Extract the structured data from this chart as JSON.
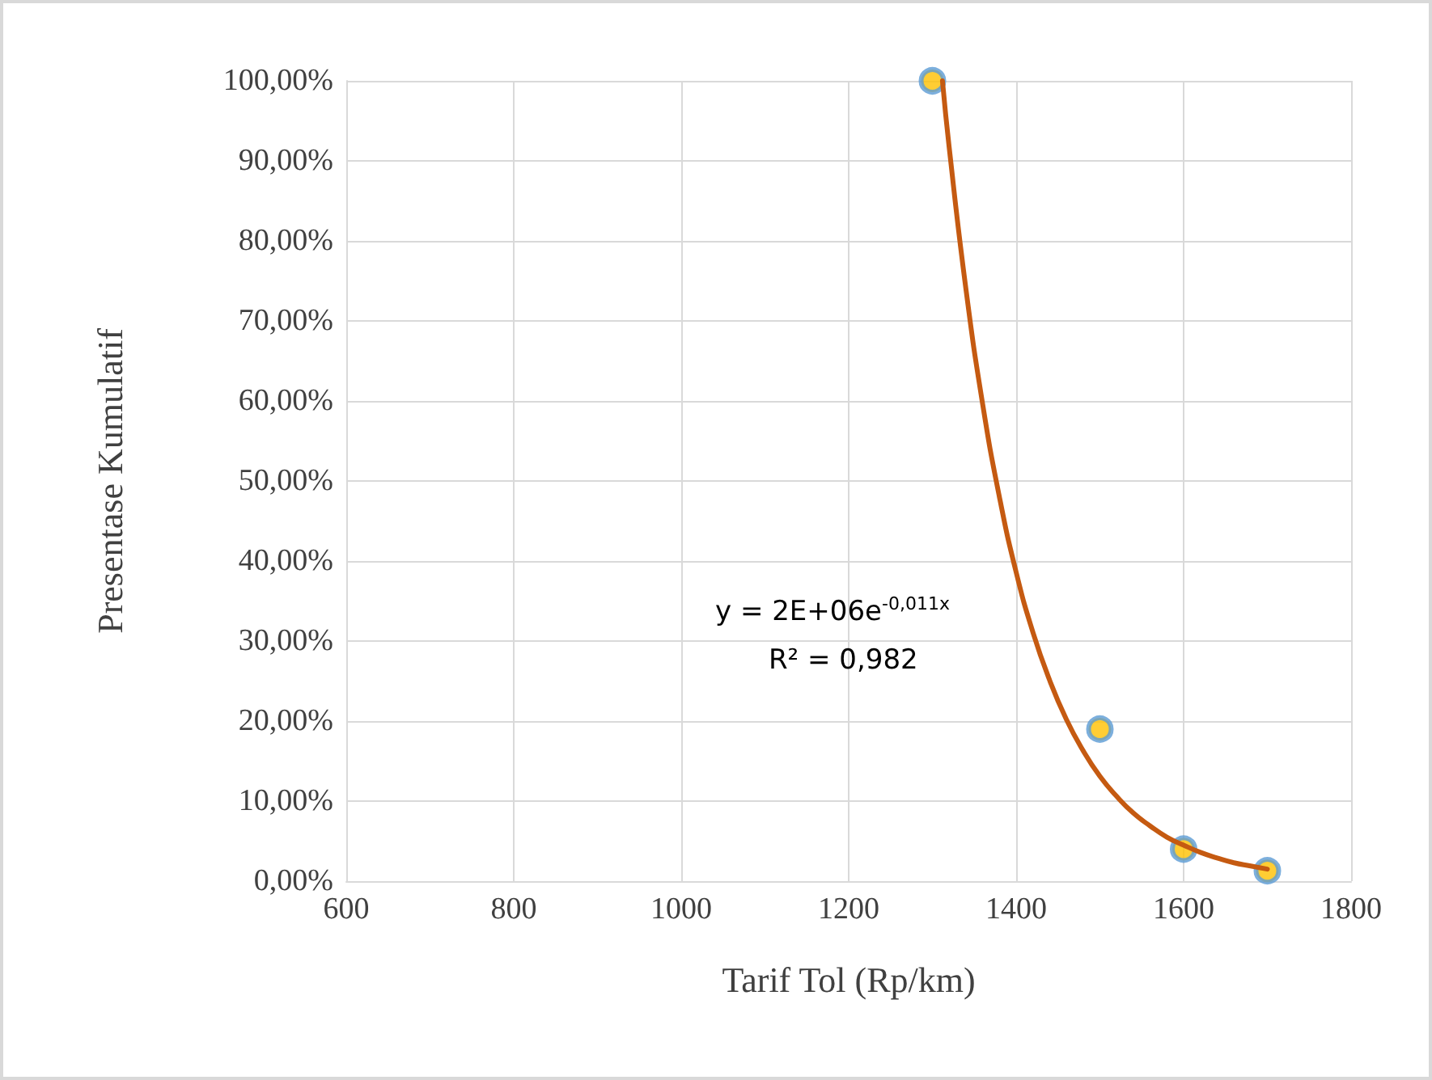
{
  "chart_data": {
    "type": "scatter",
    "xlabel": "Tarif Tol (Rp/km)",
    "ylabel": "Presentase Kumulatif",
    "xlim": [
      600,
      1800
    ],
    "xticks": [
      600,
      800,
      1000,
      1200,
      1400,
      1600,
      1800
    ],
    "ylim": [
      0,
      100
    ],
    "yticks": [
      {
        "value": 0,
        "label": "0,00%"
      },
      {
        "value": 10,
        "label": "10,00%"
      },
      {
        "value": 20,
        "label": "20,00%"
      },
      {
        "value": 30,
        "label": "30,00%"
      },
      {
        "value": 40,
        "label": "40,00%"
      },
      {
        "value": 50,
        "label": "50,00%"
      },
      {
        "value": 60,
        "label": "60,00%"
      },
      {
        "value": 70,
        "label": "70,00%"
      },
      {
        "value": 80,
        "label": "80,00%"
      },
      {
        "value": 90,
        "label": "90,00%"
      },
      {
        "value": 100,
        "label": "100,00%"
      }
    ],
    "grid": true,
    "marker": "circle",
    "annotations": [
      "y = 2E+06e$^{-0,011x}$",
      "R² = 0,982"
    ],
    "series": [
      {
        "color": "#ffc000",
        "x": [
          1300,
          1500,
          1600,
          1700
        ],
        "values": [
          100,
          19,
          4,
          1.3
        ]
      },
      {
        "type": "line",
        "color": "#c55a11",
        "marker": "none",
        "line_style": "solid",
        "x": [
          1312,
          1320,
          1340,
          1360,
          1380,
          1400,
          1420,
          1440,
          1460,
          1480,
          1500,
          1520,
          1540,
          1560,
          1580,
          1600,
          1620,
          1640,
          1660,
          1680,
          1700
        ],
        "values": [
          100,
          91.7,
          74,
          59.6,
          48,
          38.6,
          31.1,
          25.1,
          20.2,
          16.3,
          13.1,
          10.6,
          8.5,
          6.9,
          5.5,
          4.5,
          3.6,
          2.9,
          2.3,
          1.9,
          1.5
        ]
      }
    ]
  }
}
